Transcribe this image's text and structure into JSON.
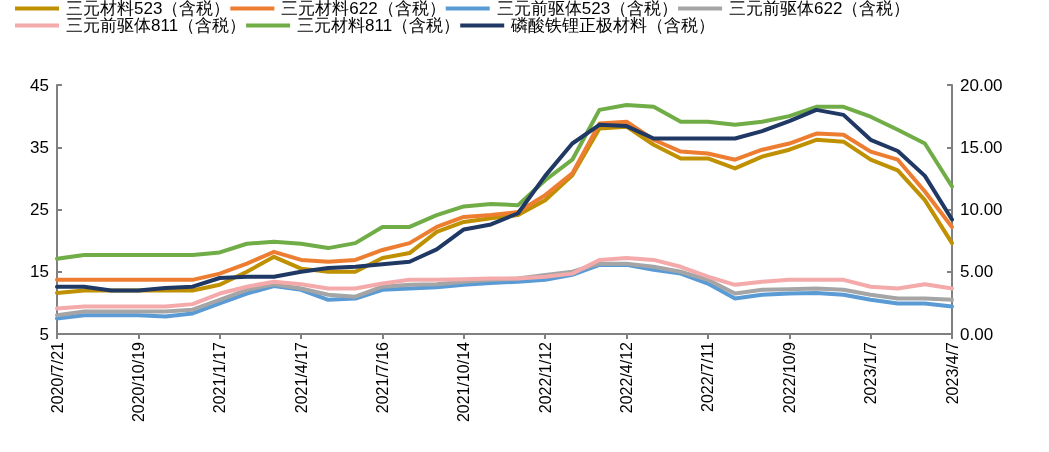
{
  "chart_data": {
    "type": "line",
    "x": [
      "2020-07-21",
      "2020-08-20",
      "2020-09-19",
      "2020-10-19",
      "2020-11-18",
      "2020-12-18",
      "2021-01-17",
      "2021-02-16",
      "2021-03-18",
      "2021-04-17",
      "2021-05-17",
      "2021-06-16",
      "2021-07-16",
      "2021-08-15",
      "2021-09-14",
      "2021-10-14",
      "2021-11-13",
      "2021-12-13",
      "2022-01-12",
      "2022-02-11",
      "2022-03-13",
      "2022-04-12",
      "2022-05-12",
      "2022-06-11",
      "2022-07-11",
      "2022-08-10",
      "2022-09-09",
      "2022-10-09",
      "2022-11-08",
      "2022-12-08",
      "2023-01-07",
      "2023-02-06",
      "2023-03-08",
      "2023-04-07"
    ],
    "series": [
      {
        "name": "三元材料523（含税）",
        "color": "#bf9000",
        "values": [
          11.6,
          12.0,
          12.0,
          12.0,
          12.0,
          12.0,
          12.9,
          15.0,
          17.4,
          15.5,
          15.0,
          15.0,
          17.2,
          18.0,
          21.4,
          23.0,
          23.6,
          24.1,
          26.5,
          30.5,
          38.0,
          38.3,
          35.4,
          33.2,
          33.2,
          31.6,
          33.5,
          34.6,
          36.2,
          35.9,
          33.0,
          31.3,
          26.5,
          19.6
        ]
      },
      {
        "name": "三元材料622（含税）",
        "color": "#ed7d31",
        "values": [
          13.7,
          13.7,
          13.7,
          13.7,
          13.7,
          13.7,
          14.7,
          16.3,
          18.2,
          16.9,
          16.6,
          16.9,
          18.5,
          19.6,
          22.2,
          23.8,
          24.1,
          24.6,
          27.3,
          30.8,
          38.8,
          39.1,
          36.2,
          34.3,
          34.0,
          33.0,
          34.6,
          35.6,
          37.2,
          37.0,
          34.3,
          33.0,
          27.9,
          22.2
        ]
      },
      {
        "name": "三元前驱体523（含税）",
        "color": "#5b9bd5",
        "values": [
          7.5,
          8.0,
          8.0,
          8.0,
          7.8,
          8.3,
          9.9,
          11.5,
          12.7,
          12.1,
          10.5,
          10.7,
          12.1,
          12.3,
          12.5,
          12.9,
          13.2,
          13.4,
          13.7,
          14.5,
          16.1,
          16.1,
          15.3,
          14.7,
          13.1,
          10.7,
          11.3,
          11.5,
          11.6,
          11.3,
          10.5,
          9.9,
          9.9,
          9.4
        ]
      },
      {
        "name": "三元前驱体622（含税）",
        "color": "#a5a5a5",
        "values": [
          8.0,
          8.6,
          8.6,
          8.6,
          8.6,
          8.9,
          10.5,
          12.1,
          13.0,
          12.3,
          11.3,
          11.0,
          12.6,
          12.9,
          13.0,
          13.4,
          13.7,
          13.9,
          14.5,
          15.0,
          16.3,
          16.3,
          15.8,
          15.0,
          13.7,
          11.5,
          12.1,
          12.2,
          12.3,
          12.1,
          11.3,
          10.7,
          10.7,
          10.5
        ]
      },
      {
        "name": "三元前驱体811（含税）",
        "color": "#f4aaaa",
        "values": [
          9.1,
          9.4,
          9.4,
          9.4,
          9.4,
          9.8,
          11.5,
          12.6,
          13.4,
          13.0,
          12.3,
          12.3,
          13.1,
          13.7,
          13.7,
          13.8,
          13.9,
          13.9,
          14.2,
          14.7,
          16.9,
          17.2,
          16.9,
          15.8,
          14.2,
          12.9,
          13.4,
          13.7,
          13.7,
          13.7,
          12.6,
          12.3,
          13.0,
          12.3
        ]
      },
      {
        "name": "三元材料811（含税）",
        "color": "#70ad47",
        "values": [
          17.1,
          17.7,
          17.7,
          17.7,
          17.7,
          17.7,
          18.1,
          19.5,
          19.8,
          19.5,
          18.8,
          19.6,
          22.2,
          22.2,
          24.1,
          25.5,
          25.9,
          25.7,
          29.7,
          33.0,
          41.0,
          41.8,
          41.5,
          39.1,
          39.1,
          38.6,
          39.1,
          40.0,
          41.5,
          41.5,
          39.9,
          37.8,
          35.6,
          28.7
        ]
      },
      {
        "name": "磷酸铁锂正极材料（含税）",
        "color": "#203864",
        "axis": "y2",
        "values": [
          3.8,
          3.8,
          3.5,
          3.5,
          3.7,
          3.8,
          4.5,
          4.6,
          4.6,
          5.0,
          5.3,
          5.4,
          5.6,
          5.8,
          6.8,
          8.4,
          8.8,
          9.7,
          12.7,
          15.3,
          16.8,
          16.7,
          15.7,
          15.7,
          15.7,
          15.7,
          16.3,
          17.1,
          18.0,
          17.6,
          15.6,
          14.7,
          12.7,
          9.2
        ]
      }
    ],
    "xlim": [
      "2020-07-21",
      "2023-04-07"
    ],
    "xticks": [
      {
        "value": "2020-07-21",
        "label": "2020/7/21"
      },
      {
        "value": "2020-10-19",
        "label": "2020/10/19"
      },
      {
        "value": "2021-01-17",
        "label": "2021/1/17"
      },
      {
        "value": "2021-04-17",
        "label": "2021/4/17"
      },
      {
        "value": "2021-07-16",
        "label": "2021/7/16"
      },
      {
        "value": "2021-10-14",
        "label": "2021/10/14"
      },
      {
        "value": "2022-01-12",
        "label": "2022/1/12"
      },
      {
        "value": "2022-04-12",
        "label": "2022/4/12"
      },
      {
        "value": "2022-07-11",
        "label": "2022/7/11"
      },
      {
        "value": "2022-10-09",
        "label": "2022/10/9"
      },
      {
        "value": "2023-01-07",
        "label": "2023/1/7"
      },
      {
        "value": "2023-04-07",
        "label": "2023/4/7"
      }
    ],
    "ylim": [
      5,
      45
    ],
    "yticks": [
      5,
      15,
      25,
      35,
      45
    ],
    "y2lim": [
      0,
      20
    ],
    "y2ticks": [
      {
        "value": 0,
        "label": "0.00"
      },
      {
        "value": 5,
        "label": "5.00"
      },
      {
        "value": 10,
        "label": "10.00"
      },
      {
        "value": 15,
        "label": "15.00"
      },
      {
        "value": 20,
        "label": "20.00"
      }
    ],
    "grid": false,
    "legend": "top",
    "marker": "none",
    "line_style": "solid"
  }
}
